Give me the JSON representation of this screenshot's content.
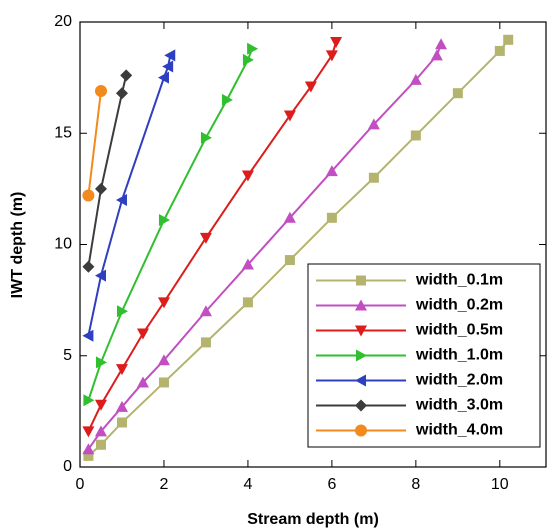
{
  "chart_data": {
    "type": "line",
    "x_label": "Stream depth (m)",
    "y_label": "IWT depth (m)",
    "xlim": [
      0,
      11.1
    ],
    "ylim": [
      0,
      20
    ],
    "xticks": [
      0,
      2,
      4,
      6,
      8,
      10
    ],
    "yticks": [
      0,
      5,
      10,
      15,
      20
    ],
    "legend": "lower right",
    "series": [
      {
        "name": "width_0.1m",
        "color": "#b4b46e",
        "marker": "square",
        "x": [
          0.2,
          0.5,
          1.0,
          2.0,
          3.0,
          4.0,
          5.0,
          6.0,
          7.0,
          8.0,
          9.0,
          10.0,
          10.2
        ],
        "values": [
          0.5,
          1.0,
          2.0,
          3.8,
          5.6,
          7.4,
          9.3,
          11.2,
          13.0,
          14.9,
          16.8,
          18.7,
          19.2
        ]
      },
      {
        "name": "width_0.2m",
        "color": "#c24fc2",
        "marker": "triangle-up",
        "x": [
          0.2,
          0.5,
          1.0,
          1.5,
          2.0,
          3.0,
          4.0,
          5.0,
          6.0,
          7.0,
          8.0,
          8.5,
          8.6
        ],
        "values": [
          0.8,
          1.6,
          2.7,
          3.8,
          4.8,
          7.0,
          9.1,
          11.2,
          13.3,
          15.4,
          17.4,
          18.5,
          19.0
        ]
      },
      {
        "name": "width_0.5m",
        "color": "#dd1c1c",
        "marker": "triangle-down",
        "x": [
          0.2,
          0.5,
          1.0,
          1.5,
          2.0,
          3.0,
          4.0,
          5.0,
          5.5,
          6.0,
          6.1
        ],
        "values": [
          1.6,
          2.8,
          4.4,
          6.0,
          7.4,
          10.3,
          13.1,
          15.8,
          17.1,
          18.5,
          19.1
        ]
      },
      {
        "name": "width_1.0m",
        "color": "#2fbf2f",
        "marker": "triangle-right",
        "x": [
          0.2,
          0.5,
          1.0,
          2.0,
          3.0,
          3.5,
          4.0,
          4.1
        ],
        "values": [
          3.0,
          4.7,
          7.0,
          11.1,
          14.8,
          16.5,
          18.3,
          18.8
        ]
      },
      {
        "name": "width_2.0m",
        "color": "#2e3fbf",
        "marker": "triangle-left",
        "x": [
          0.2,
          0.5,
          1.0,
          2.0,
          2.1,
          2.15
        ],
        "values": [
          5.9,
          8.6,
          12.0,
          17.5,
          18.0,
          18.5
        ]
      },
      {
        "name": "width_3.0m",
        "color": "#3c3c3c",
        "marker": "diamond",
        "x": [
          0.2,
          0.5,
          1.0,
          1.1
        ],
        "values": [
          9.0,
          12.5,
          16.8,
          17.6
        ]
      },
      {
        "name": "width_4.0m",
        "color": "#f28a1e",
        "marker": "circle",
        "x": [
          0.2,
          0.5
        ],
        "values": [
          12.2,
          16.9
        ]
      }
    ]
  }
}
